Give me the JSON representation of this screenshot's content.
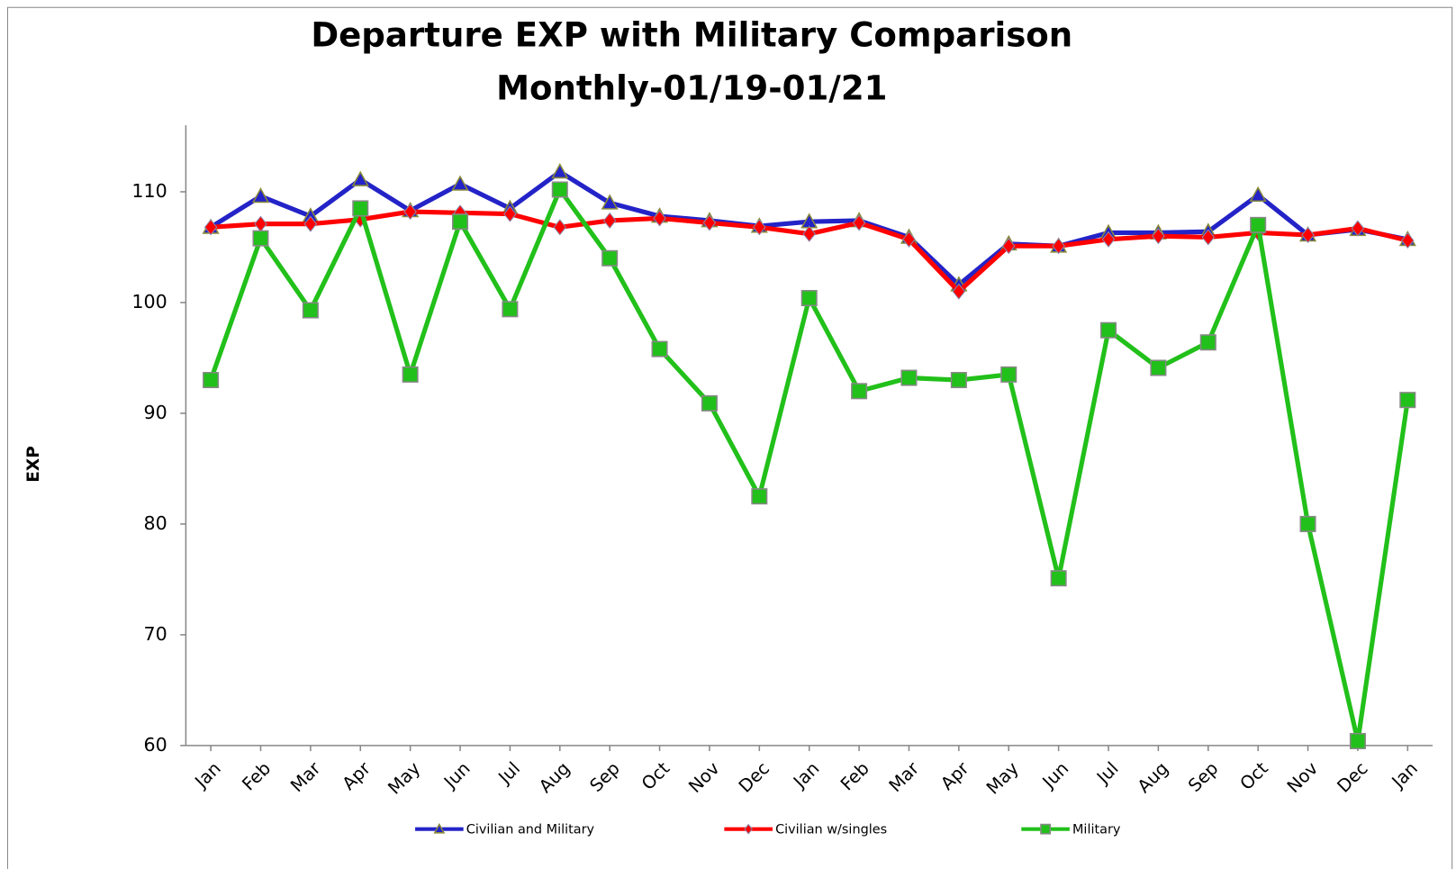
{
  "chart_data": {
    "type": "line",
    "title": "Departure EXP with Military Comparison",
    "subtitle": "Monthly-01/19-01/21",
    "y_label": "EXP",
    "categories": [
      "Jan",
      "Feb",
      "Mar",
      "Apr",
      "May",
      "Jun",
      "Jul",
      "Aug",
      "Sep",
      "Oct",
      "Nov",
      "Dec",
      "Jan",
      "Feb",
      "Mar",
      "Apr",
      "May",
      "Jun",
      "Jul",
      "Aug",
      "Sep",
      "Oct",
      "Nov",
      "Dec",
      "Jan"
    ],
    "series": [
      {
        "name": "Civilian and Military",
        "color": "#2323c8",
        "marker": "triangle",
        "values": [
          106.8,
          109.6,
          107.8,
          111.1,
          108.3,
          110.7,
          108.5,
          111.8,
          109.0,
          107.8,
          107.4,
          106.9,
          107.3,
          107.4,
          105.9,
          101.6,
          105.3,
          105.1,
          106.3,
          106.3,
          106.4,
          109.7,
          106.1,
          106.6,
          105.7
        ]
      },
      {
        "name": "Civilian w/singles",
        "color": "#ff0000",
        "marker": "diamond",
        "values": [
          106.8,
          107.1,
          107.1,
          107.5,
          108.2,
          108.1,
          108.0,
          106.8,
          107.4,
          107.6,
          107.2,
          106.8,
          106.2,
          107.2,
          105.7,
          101.0,
          105.1,
          105.1,
          105.7,
          106.0,
          105.9,
          106.3,
          106.1,
          106.7,
          105.6
        ]
      },
      {
        "name": "Military",
        "color": "#22c01a",
        "marker": "square",
        "values": [
          93.0,
          105.8,
          99.3,
          108.5,
          93.5,
          107.3,
          99.4,
          110.2,
          104.0,
          95.8,
          90.9,
          82.5,
          100.4,
          92.0,
          93.2,
          93.0,
          93.5,
          75.1,
          97.5,
          94.1,
          96.4,
          107.0,
          80.0,
          60.4,
          91.2
        ]
      }
    ],
    "ylim": [
      60,
      116
    ],
    "yticks": [
      60,
      70,
      80,
      90,
      100,
      110
    ],
    "grid": false,
    "legend": "bottom"
  }
}
